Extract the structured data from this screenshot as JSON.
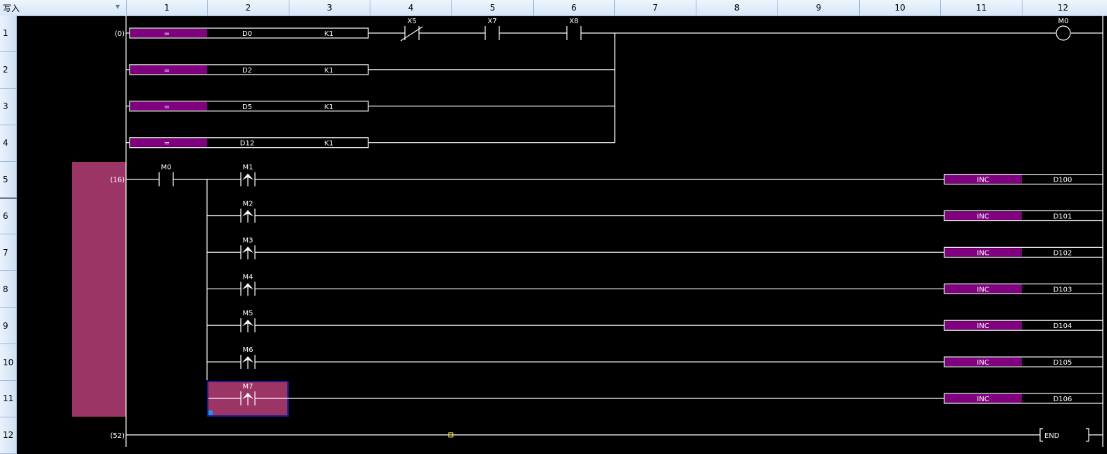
{
  "toolbar": {
    "mode": "写入",
    "dropdown_icon": "chevron-down-icon"
  },
  "columns": [
    "1",
    "2",
    "3",
    "4",
    "5",
    "6",
    "7",
    "8",
    "9",
    "10",
    "11",
    "12"
  ],
  "rows": [
    "1",
    "2",
    "3",
    "4",
    "5",
    "6",
    "7",
    "8",
    "9",
    "10",
    "11",
    "12"
  ],
  "colors": {
    "instruction_fill": "#800080",
    "selection_fill": "#9b3565",
    "selection_border": "#1a1a8c",
    "wire": "#ffffff",
    "background": "#000000"
  },
  "rung1": {
    "step": "(0)",
    "compares": [
      {
        "op": "=",
        "s1": "D0",
        "s2": "K1"
      },
      {
        "op": "=",
        "s1": "D2",
        "s2": "K1"
      },
      {
        "op": "=",
        "s1": "D5",
        "s2": "K1"
      },
      {
        "op": "=",
        "s1": "D12",
        "s2": "K1"
      }
    ],
    "contacts": [
      {
        "device": "X5",
        "type": "normally-closed"
      },
      {
        "device": "X7",
        "type": "normally-open"
      },
      {
        "device": "X8",
        "type": "normally-open"
      }
    ],
    "coil": "M0"
  },
  "rung2": {
    "step": "(16)",
    "contact": "M0",
    "branches": [
      {
        "pulse": "M1",
        "instr": "INC",
        "operand": "D100"
      },
      {
        "pulse": "M2",
        "instr": "INC",
        "operand": "D101"
      },
      {
        "pulse": "M3",
        "instr": "INC",
        "operand": "D102"
      },
      {
        "pulse": "M4",
        "instr": "INC",
        "operand": "D103"
      },
      {
        "pulse": "M5",
        "instr": "INC",
        "operand": "D104"
      },
      {
        "pulse": "M6",
        "instr": "INC",
        "operand": "D105"
      },
      {
        "pulse": "M7",
        "instr": "INC",
        "operand": "D106"
      }
    ]
  },
  "rung3": {
    "step": "(52)",
    "instr": "END"
  }
}
